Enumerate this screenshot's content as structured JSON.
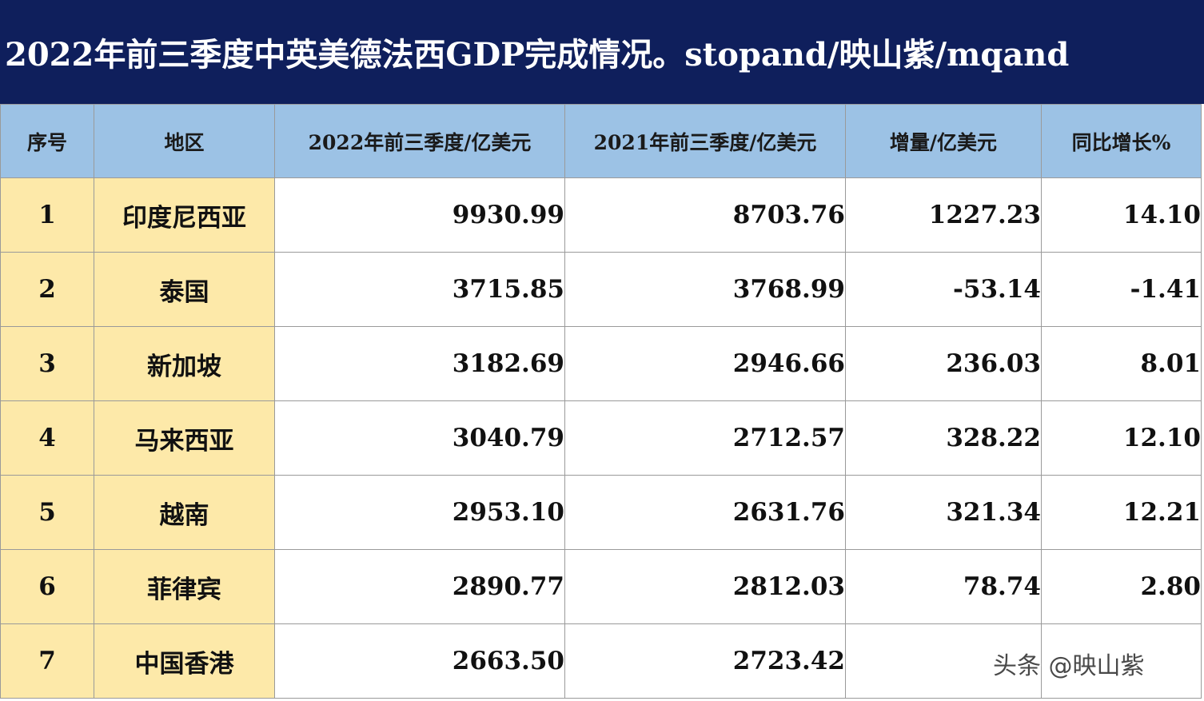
{
  "title": "2022年前三季度中英美德法西GDP完成情况。stopand/映山紫/mqand",
  "colors": {
    "title_bg": "#0f1f5c",
    "header_bg": "#9cc2e5",
    "label_bg": "#fde9a9",
    "negative": "#e0201c"
  },
  "table": {
    "headers": [
      "序号",
      "地区",
      "2022年前三季度/亿美元",
      "2021年前三季度/亿美元",
      "增量/亿美元",
      "同比增长%"
    ],
    "rows": [
      {
        "idx": "1",
        "region": "印度尼西亚",
        "gdp2022": "9930.99",
        "gdp2021": "8703.76",
        "delta": "1227.23",
        "growth": "14.10"
      },
      {
        "idx": "2",
        "region": "泰国",
        "gdp2022": "3715.85",
        "gdp2021": "3768.99",
        "delta": "-53.14",
        "growth": "-1.41"
      },
      {
        "idx": "3",
        "region": "新加坡",
        "gdp2022": "3182.69",
        "gdp2021": "2946.66",
        "delta": "236.03",
        "growth": "8.01"
      },
      {
        "idx": "4",
        "region": "马来西亚",
        "gdp2022": "3040.79",
        "gdp2021": "2712.57",
        "delta": "328.22",
        "growth": "12.10"
      },
      {
        "idx": "5",
        "region": "越南",
        "gdp2022": "2953.10",
        "gdp2021": "2631.76",
        "delta": "321.34",
        "growth": "12.21"
      },
      {
        "idx": "6",
        "region": "菲律宾",
        "gdp2022": "2890.77",
        "gdp2021": "2812.03",
        "delta": "78.74",
        "growth": "2.80"
      },
      {
        "idx": "7",
        "region": "中国香港",
        "gdp2022": "2663.50",
        "gdp2021": "2723.42",
        "delta": "",
        "growth": ""
      }
    ]
  },
  "watermark": "头条 @映山紫"
}
